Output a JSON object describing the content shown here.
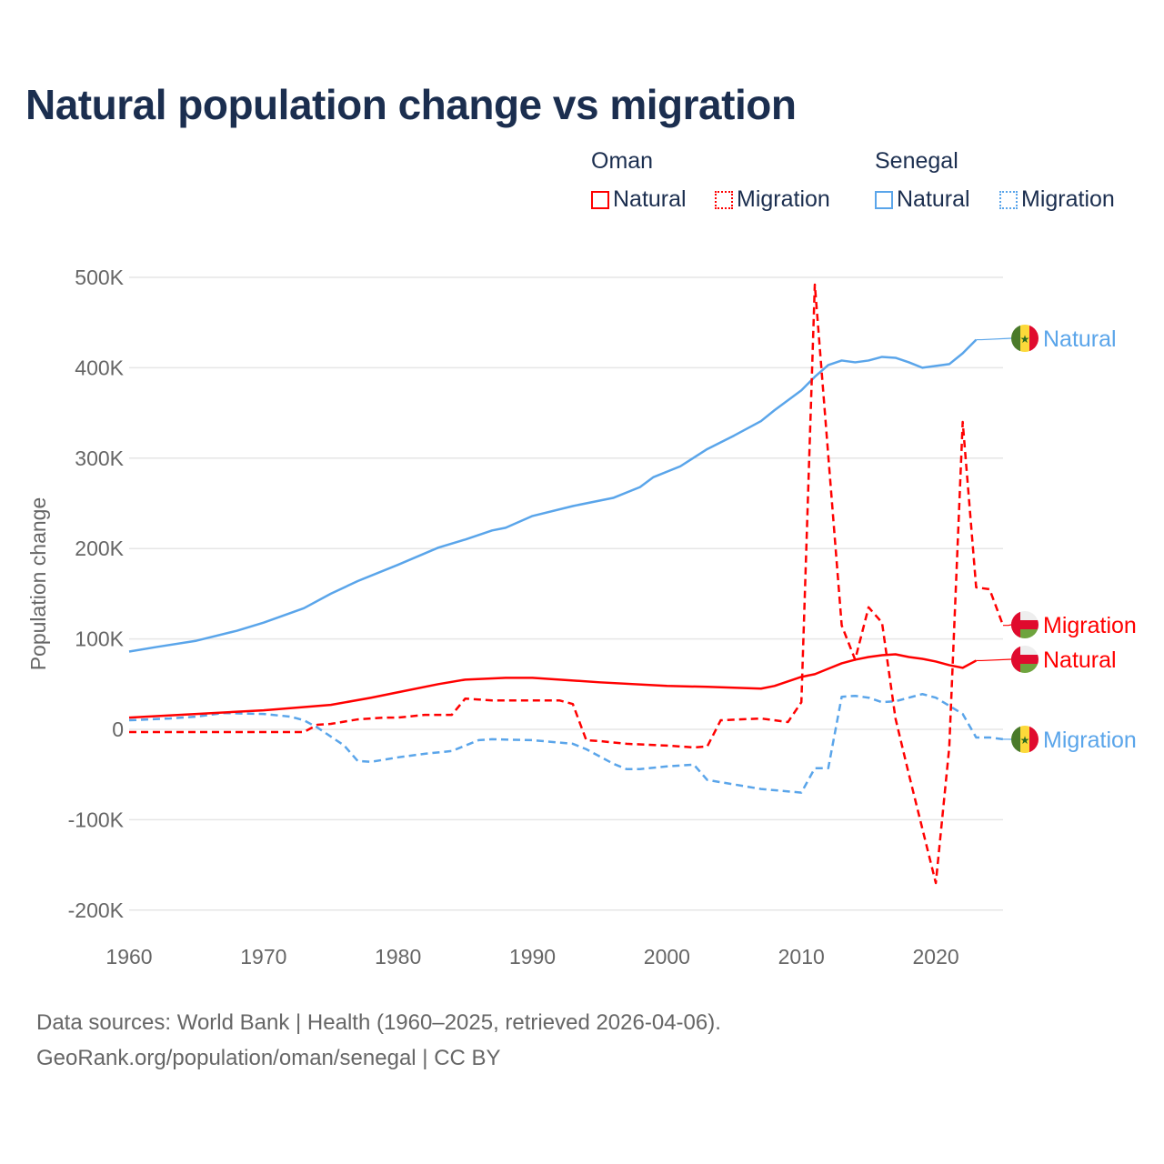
{
  "title": "Natural population change vs migration",
  "legend": {
    "groups": [
      {
        "name": "Oman",
        "items": [
          {
            "label": "Natural",
            "style": "solid",
            "color": "#ff0000"
          },
          {
            "label": "Migration",
            "style": "dotted",
            "color": "#ff0000"
          }
        ]
      },
      {
        "name": "Senegal",
        "items": [
          {
            "label": "Natural",
            "style": "solid",
            "color": "#5aa5ea"
          },
          {
            "label": "Migration",
            "style": "dotted",
            "color": "#5aa5ea"
          }
        ]
      }
    ]
  },
  "footer": {
    "line1": "Data sources: World Bank | Health (1960–2025, retrieved 2026-04-06).",
    "line2": "GeoRank.org/population/oman/senegal | CC BY"
  },
  "chart_data": {
    "type": "line",
    "title": "Natural population change vs migration",
    "xlabel": "",
    "ylabel": "Population change",
    "xlim": [
      1960,
      2025
    ],
    "ylim": [
      -200000,
      500000
    ],
    "xticks": [
      1960,
      1970,
      1980,
      1990,
      2000,
      2010,
      2020
    ],
    "xtick_labels": [
      "1960",
      "1970",
      "1980",
      "1990",
      "2000",
      "2010",
      "2020"
    ],
    "yticks": [
      -200000,
      -100000,
      0,
      100000,
      200000,
      300000,
      400000,
      500000
    ],
    "ytick_labels": [
      "-200K",
      "-100K",
      "0",
      "100K",
      "200K",
      "300K",
      "400K",
      "500K"
    ],
    "grid": true,
    "series": [
      {
        "name": "Senegal Natural",
        "end_label": "Natural",
        "country": "Senegal",
        "color": "#5aa5ea",
        "dash": false,
        "x": [
          1960,
          1962,
          1965,
          1968,
          1970,
          1973,
          1975,
          1977,
          1980,
          1983,
          1985,
          1986,
          1987,
          1988,
          1990,
          1993,
          1996,
          1998,
          1999,
          2001,
          2003,
          2005,
          2007,
          2008,
          2010,
          2011,
          2012,
          2013,
          2014,
          2015,
          2016,
          2017,
          2018,
          2019,
          2020,
          2021,
          2022,
          2023
        ],
        "y": [
          86000,
          91000,
          98000,
          109000,
          118000,
          134000,
          150000,
          164000,
          182000,
          201000,
          210000,
          215000,
          220000,
          223000,
          236000,
          247000,
          256000,
          268000,
          279000,
          291000,
          310000,
          325000,
          341000,
          353000,
          375000,
          390000,
          403000,
          408000,
          406000,
          408000,
          412000,
          411000,
          406000,
          400000,
          402000,
          404000,
          416000,
          431000
        ]
      },
      {
        "name": "Senegal Migration",
        "end_label": "Migration",
        "country": "Senegal",
        "color": "#5aa5ea",
        "dash": true,
        "x": [
          1960,
          1963,
          1965,
          1967,
          1970,
          1972,
          1973,
          1974,
          1975,
          1976,
          1977,
          1978,
          1980,
          1982,
          1984,
          1986,
          1987,
          1990,
          1993,
          1994,
          1996,
          1997,
          1998,
          2000,
          2002,
          2003,
          2005,
          2007,
          2010,
          2011,
          2012,
          2013,
          2014,
          2015,
          2016,
          2017,
          2018,
          2019,
          2020,
          2021,
          2022,
          2023,
          2024,
          2025
        ],
        "y": [
          10000,
          12000,
          14000,
          18000,
          17000,
          14000,
          10000,
          2000,
          -8000,
          -18000,
          -35000,
          -36000,
          -31000,
          -27000,
          -24000,
          -12000,
          -11000,
          -12000,
          -16000,
          -22000,
          -38000,
          -44000,
          -44000,
          -41000,
          -39000,
          -56000,
          -61000,
          -66000,
          -70000,
          -43000,
          -43000,
          36000,
          37000,
          35000,
          30000,
          31000,
          35000,
          39000,
          35000,
          26000,
          17000,
          -9000,
          -9000,
          -11000
        ]
      },
      {
        "name": "Oman Natural",
        "end_label": "Natural",
        "country": "Oman",
        "color": "#ff0000",
        "dash": false,
        "x": [
          1960,
          1965,
          1970,
          1975,
          1978,
          1980,
          1983,
          1985,
          1988,
          1990,
          1995,
          2000,
          2003,
          2005,
          2007,
          2008,
          2010,
          2011,
          2012,
          2013,
          2014,
          2015,
          2016,
          2017,
          2018,
          2019,
          2020,
          2021,
          2022,
          2023
        ],
        "y": [
          13000,
          17000,
          21000,
          27000,
          35000,
          41000,
          50000,
          55000,
          57000,
          57000,
          52000,
          48000,
          47000,
          46000,
          45000,
          48000,
          58000,
          61000,
          67000,
          73000,
          77000,
          80000,
          82000,
          83000,
          80000,
          78000,
          75000,
          71000,
          68000,
          76000
        ]
      },
      {
        "name": "Oman Migration",
        "end_label": "Migration",
        "country": "Oman",
        "color": "#ff0000",
        "dash": true,
        "x": [
          1960,
          1973,
          1974,
          1975,
          1977,
          1979,
          1980,
          1982,
          1984,
          1985,
          1986,
          1987,
          1992,
          1993,
          1994,
          1995,
          1997,
          2000,
          2002,
          2003,
          2004,
          2007,
          2009,
          2010,
          2011,
          2012,
          2013,
          2014,
          2015,
          2016,
          2017,
          2018,
          2019,
          2020,
          2021,
          2022,
          2023,
          2024,
          2025
        ],
        "y": [
          -3000,
          -3000,
          5000,
          6000,
          11000,
          13000,
          13000,
          16000,
          16000,
          34000,
          33000,
          32000,
          32000,
          28000,
          -12000,
          -13000,
          -16000,
          -18000,
          -20000,
          -19000,
          10000,
          12000,
          8000,
          30000,
          492000,
          303000,
          115000,
          77000,
          135000,
          118000,
          12000,
          -50000,
          -110000,
          -170000,
          -20000,
          340000,
          157000,
          155000,
          115000
        ]
      }
    ]
  }
}
